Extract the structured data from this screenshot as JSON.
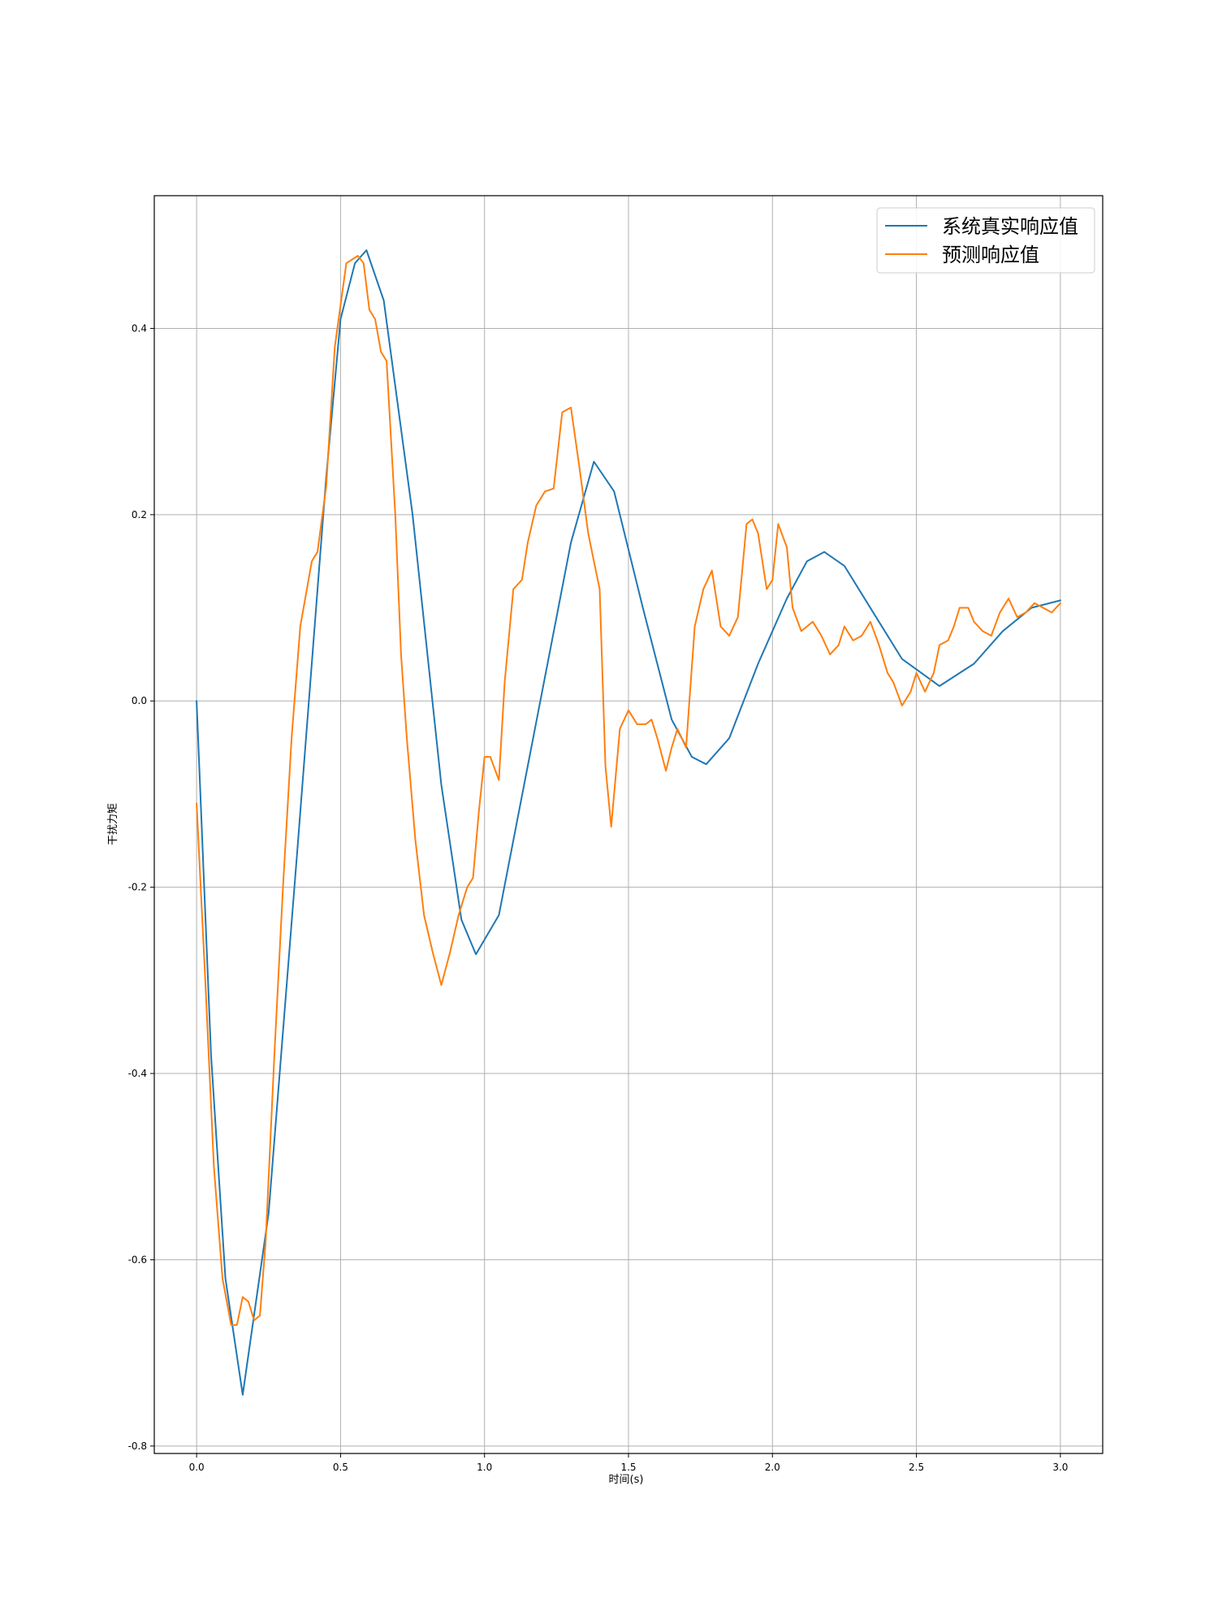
{
  "chart_data": {
    "type": "line",
    "title": "",
    "xlabel": "时间(s)",
    "ylabel": "干扰力矩",
    "xlim": [
      -0.147,
      3.147
    ],
    "ylim": [
      -0.808,
      0.5425
    ],
    "xticks": [
      0.0,
      0.5,
      1.0,
      1.5,
      2.0,
      2.5,
      3.0
    ],
    "xtick_labels": [
      "0.0",
      "0.5",
      "1.0",
      "1.5",
      "2.0",
      "2.5",
      "3.0"
    ],
    "yticks": [
      -0.8,
      -0.6,
      -0.4,
      -0.2,
      0.0,
      0.2,
      0.4
    ],
    "ytick_labels": [
      "-0.8",
      "-0.6",
      "-0.4",
      "-0.2",
      "0.0",
      "0.2",
      "0.4"
    ],
    "grid": true,
    "legend_position": "top-right",
    "series": [
      {
        "name": "系统真实响应值",
        "color": "#1f77b4",
        "x": [
          0.0,
          0.05,
          0.1,
          0.16,
          0.25,
          0.35,
          0.45,
          0.5,
          0.55,
          0.59,
          0.65,
          0.75,
          0.85,
          0.92,
          0.97,
          1.05,
          1.15,
          1.25,
          1.3,
          1.38,
          1.45,
          1.55,
          1.65,
          1.72,
          1.77,
          1.85,
          1.95,
          2.05,
          2.12,
          2.18,
          2.25,
          2.35,
          2.45,
          2.58,
          2.7,
          2.8,
          2.9,
          3.0
        ],
        "y": [
          0.0,
          -0.38,
          -0.62,
          -0.745,
          -0.55,
          -0.16,
          0.24,
          0.41,
          0.47,
          0.484,
          0.43,
          0.2,
          -0.09,
          -0.235,
          -0.272,
          -0.23,
          -0.07,
          0.09,
          0.17,
          0.257,
          0.225,
          0.1,
          -0.02,
          -0.06,
          -0.068,
          -0.04,
          0.04,
          0.11,
          0.15,
          0.16,
          0.145,
          0.095,
          0.045,
          0.016,
          0.04,
          0.075,
          0.1,
          0.108
        ]
      },
      {
        "name": "预测响应值",
        "color": "#ff7f0e",
        "x": [
          0.0,
          0.03,
          0.06,
          0.09,
          0.12,
          0.14,
          0.16,
          0.18,
          0.2,
          0.22,
          0.24,
          0.27,
          0.3,
          0.33,
          0.36,
          0.4,
          0.42,
          0.45,
          0.48,
          0.52,
          0.56,
          0.58,
          0.6,
          0.62,
          0.64,
          0.66,
          0.69,
          0.71,
          0.73,
          0.76,
          0.79,
          0.82,
          0.85,
          0.88,
          0.91,
          0.94,
          0.96,
          0.98,
          1.0,
          1.02,
          1.05,
          1.07,
          1.1,
          1.13,
          1.15,
          1.18,
          1.21,
          1.24,
          1.27,
          1.3,
          1.33,
          1.36,
          1.38,
          1.4,
          1.42,
          1.44,
          1.47,
          1.5,
          1.53,
          1.56,
          1.58,
          1.6,
          1.63,
          1.65,
          1.67,
          1.7,
          1.73,
          1.76,
          1.79,
          1.82,
          1.85,
          1.88,
          1.91,
          1.93,
          1.95,
          1.98,
          2.0,
          2.02,
          2.05,
          2.07,
          2.1,
          2.12,
          2.14,
          2.17,
          2.2,
          2.23,
          2.25,
          2.28,
          2.31,
          2.34,
          2.37,
          2.4,
          2.42,
          2.45,
          2.48,
          2.5,
          2.53,
          2.56,
          2.58,
          2.61,
          2.63,
          2.65,
          2.68,
          2.7,
          2.73,
          2.76,
          2.79,
          2.82,
          2.85,
          2.88,
          2.91,
          2.94,
          2.97,
          3.0
        ],
        "y": [
          -0.11,
          -0.3,
          -0.5,
          -0.62,
          -0.67,
          -0.67,
          -0.64,
          -0.645,
          -0.665,
          -0.66,
          -0.58,
          -0.38,
          -0.2,
          -0.04,
          0.08,
          0.15,
          0.16,
          0.23,
          0.38,
          0.47,
          0.478,
          0.47,
          0.42,
          0.41,
          0.375,
          0.365,
          0.2,
          0.05,
          -0.04,
          -0.15,
          -0.23,
          -0.27,
          -0.305,
          -0.27,
          -0.23,
          -0.2,
          -0.19,
          -0.12,
          -0.06,
          -0.06,
          -0.085,
          0.02,
          0.12,
          0.13,
          0.17,
          0.21,
          0.225,
          0.228,
          0.31,
          0.315,
          0.25,
          0.18,
          0.15,
          0.12,
          -0.07,
          -0.135,
          -0.03,
          -0.01,
          -0.025,
          -0.025,
          -0.02,
          -0.04,
          -0.075,
          -0.05,
          -0.03,
          -0.05,
          0.08,
          0.12,
          0.14,
          0.08,
          0.07,
          0.09,
          0.19,
          0.195,
          0.18,
          0.12,
          0.13,
          0.19,
          0.165,
          0.1,
          0.075,
          0.08,
          0.085,
          0.07,
          0.05,
          0.06,
          0.08,
          0.065,
          0.07,
          0.085,
          0.06,
          0.03,
          0.02,
          -0.005,
          0.01,
          0.03,
          0.01,
          0.03,
          0.06,
          0.065,
          0.08,
          0.1,
          0.1,
          0.085,
          0.075,
          0.07,
          0.095,
          0.11,
          0.09,
          0.095,
          0.105,
          0.1,
          0.095,
          0.105
        ]
      }
    ]
  }
}
